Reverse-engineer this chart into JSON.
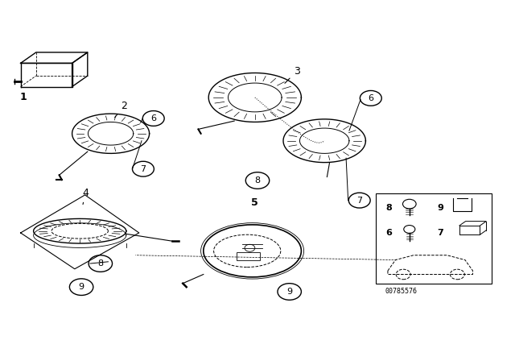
{
  "bg_color": "#ffffff",
  "fig_width": 6.4,
  "fig_height": 4.48,
  "dpi": 100,
  "line_color": "#000000",
  "text_color": "#000000",
  "font_size_label": 9,
  "font_size_footnote": 6,
  "footnote": "00785576"
}
